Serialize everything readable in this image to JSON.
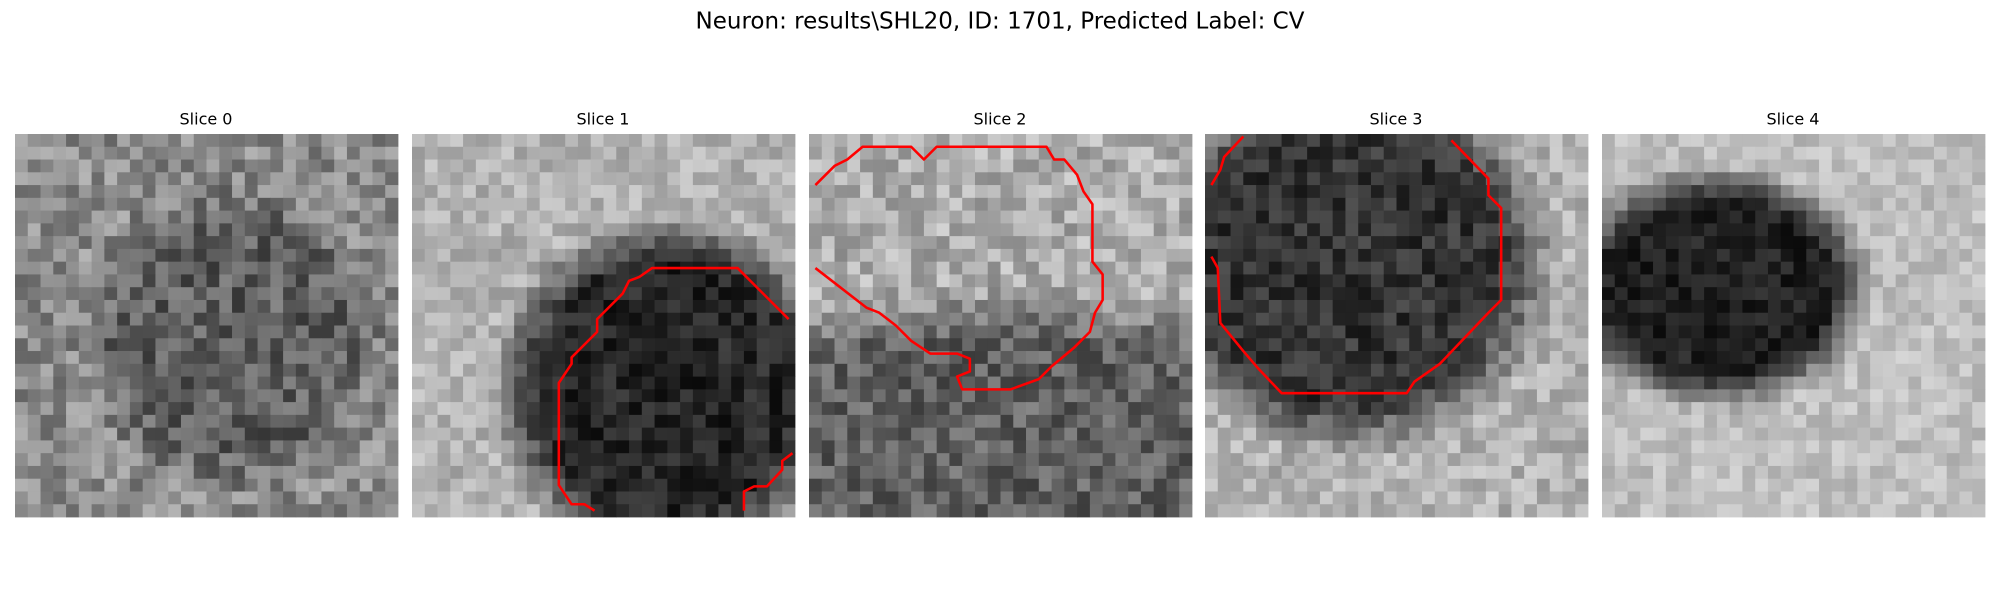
{
  "figure": {
    "title": "Neuron: results\\SHL20, ID: 1701, Predicted Label: CV",
    "panels": [
      {
        "title": "Slice 0"
      },
      {
        "title": "Slice 1"
      },
      {
        "title": "Slice 2"
      },
      {
        "title": "Slice 3"
      },
      {
        "title": "Slice 4"
      }
    ]
  }
}
